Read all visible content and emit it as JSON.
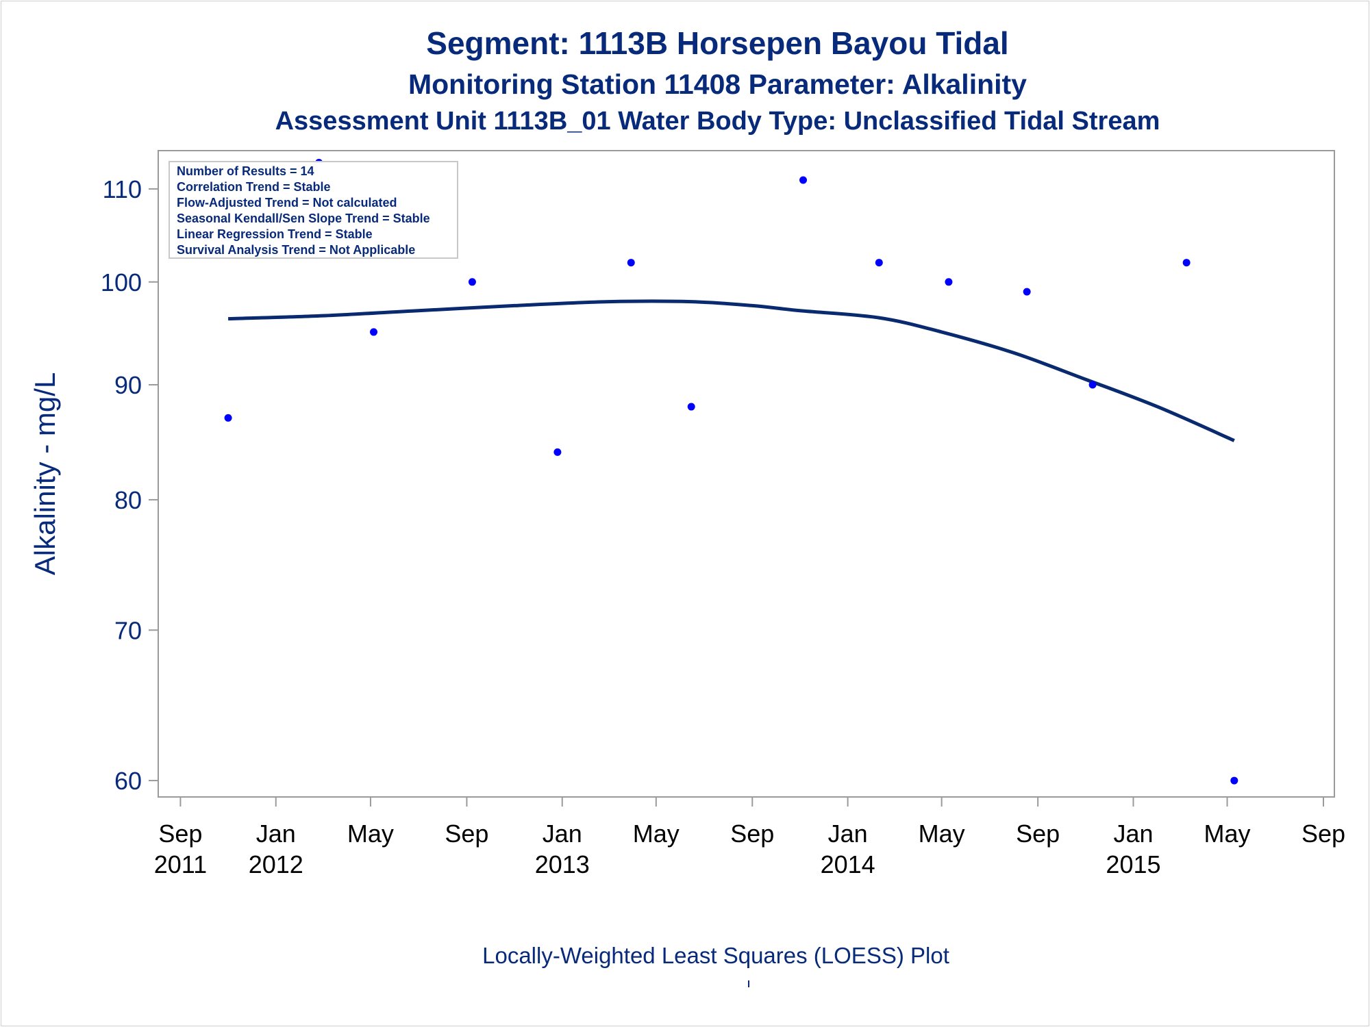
{
  "chart_data": {
    "type": "scatter",
    "title": "Segment: 1113B  Horsepen Bayou Tidal",
    "subtitle": "Monitoring Station 11408 Parameter: Alkalinity",
    "subtitle2": "Assessment Unit 1113B_01   Water Body Type: Unclassified Tidal Stream",
    "xlabel": "",
    "ylabel": "Alkalinity - mg/L",
    "footnote": "Locally-Weighted Least Squares (LOESS) Plot",
    "y_scale": "log",
    "ylim": [
      59.5,
      114
    ],
    "xlim": [
      "2011-08-15",
      "2015-09-01"
    ],
    "y_ticks": [
      60,
      70,
      80,
      90,
      100,
      110
    ],
    "x_ticks": [
      {
        "date": "2011-09-01",
        "month": "Sep",
        "year": "2011"
      },
      {
        "date": "2012-01-01",
        "month": "Jan",
        "year": "2012"
      },
      {
        "date": "2012-05-01",
        "month": "May",
        "year": ""
      },
      {
        "date": "2012-09-01",
        "month": "Sep",
        "year": ""
      },
      {
        "date": "2013-01-01",
        "month": "Jan",
        "year": "2013"
      },
      {
        "date": "2013-05-01",
        "month": "May",
        "year": ""
      },
      {
        "date": "2013-09-01",
        "month": "Sep",
        "year": ""
      },
      {
        "date": "2014-01-01",
        "month": "Jan",
        "year": "2014"
      },
      {
        "date": "2014-05-01",
        "month": "May",
        "year": ""
      },
      {
        "date": "2014-09-01",
        "month": "Sep",
        "year": ""
      },
      {
        "date": "2015-01-01",
        "month": "Jan",
        "year": "2015"
      },
      {
        "date": "2015-05-01",
        "month": "May",
        "year": ""
      },
      {
        "date": "2015-09-01",
        "month": "Sep",
        "year": ""
      }
    ],
    "points": [
      {
        "x": "2011-11-01",
        "y": 87
      },
      {
        "x": "2012-02-25",
        "y": 113
      },
      {
        "x": "2012-05-05",
        "y": 95
      },
      {
        "x": "2012-09-08",
        "y": 100
      },
      {
        "x": "2012-12-26",
        "y": 84
      },
      {
        "x": "2013-03-30",
        "y": 102
      },
      {
        "x": "2013-06-15",
        "y": 88
      },
      {
        "x": "2013-11-05",
        "y": 111
      },
      {
        "x": "2014-02-10",
        "y": 102
      },
      {
        "x": "2014-05-10",
        "y": 100
      },
      {
        "x": "2014-08-18",
        "y": 99
      },
      {
        "x": "2014-11-10",
        "y": 90
      },
      {
        "x": "2015-03-10",
        "y": 102
      },
      {
        "x": "2015-05-10",
        "y": 60
      }
    ],
    "loess_line": [
      {
        "x": "2011-11-01",
        "y": 96.3
      },
      {
        "x": "2012-03-01",
        "y": 96.6
      },
      {
        "x": "2012-07-01",
        "y": 97.1
      },
      {
        "x": "2012-11-01",
        "y": 97.6
      },
      {
        "x": "2013-03-01",
        "y": 98.0
      },
      {
        "x": "2013-06-15",
        "y": 98.0
      },
      {
        "x": "2013-09-01",
        "y": 97.6
      },
      {
        "x": "2013-11-01",
        "y": 97.1
      },
      {
        "x": "2014-02-10",
        "y": 96.4
      },
      {
        "x": "2014-05-01",
        "y": 95.0
      },
      {
        "x": "2014-08-01",
        "y": 93.0
      },
      {
        "x": "2014-11-01",
        "y": 90.5
      },
      {
        "x": "2015-02-01",
        "y": 88.0
      },
      {
        "x": "2015-05-10",
        "y": 85.0
      }
    ],
    "colors": {
      "points": "#0000ff",
      "line": "#0a2a70",
      "text": "#082a7a",
      "axis": "#9a9a9a"
    },
    "grid": false,
    "legend_placement": "top-left"
  },
  "stats_box": {
    "lines": [
      "Number of Results = 14",
      "Correlation Trend = Stable",
      "Flow-Adjusted Trend = Not calculated",
      "Seasonal Kendall/Sen Slope Trend = Stable",
      "Linear Regression Trend = Stable",
      "Survival Analysis Trend = Not Applicable"
    ]
  }
}
